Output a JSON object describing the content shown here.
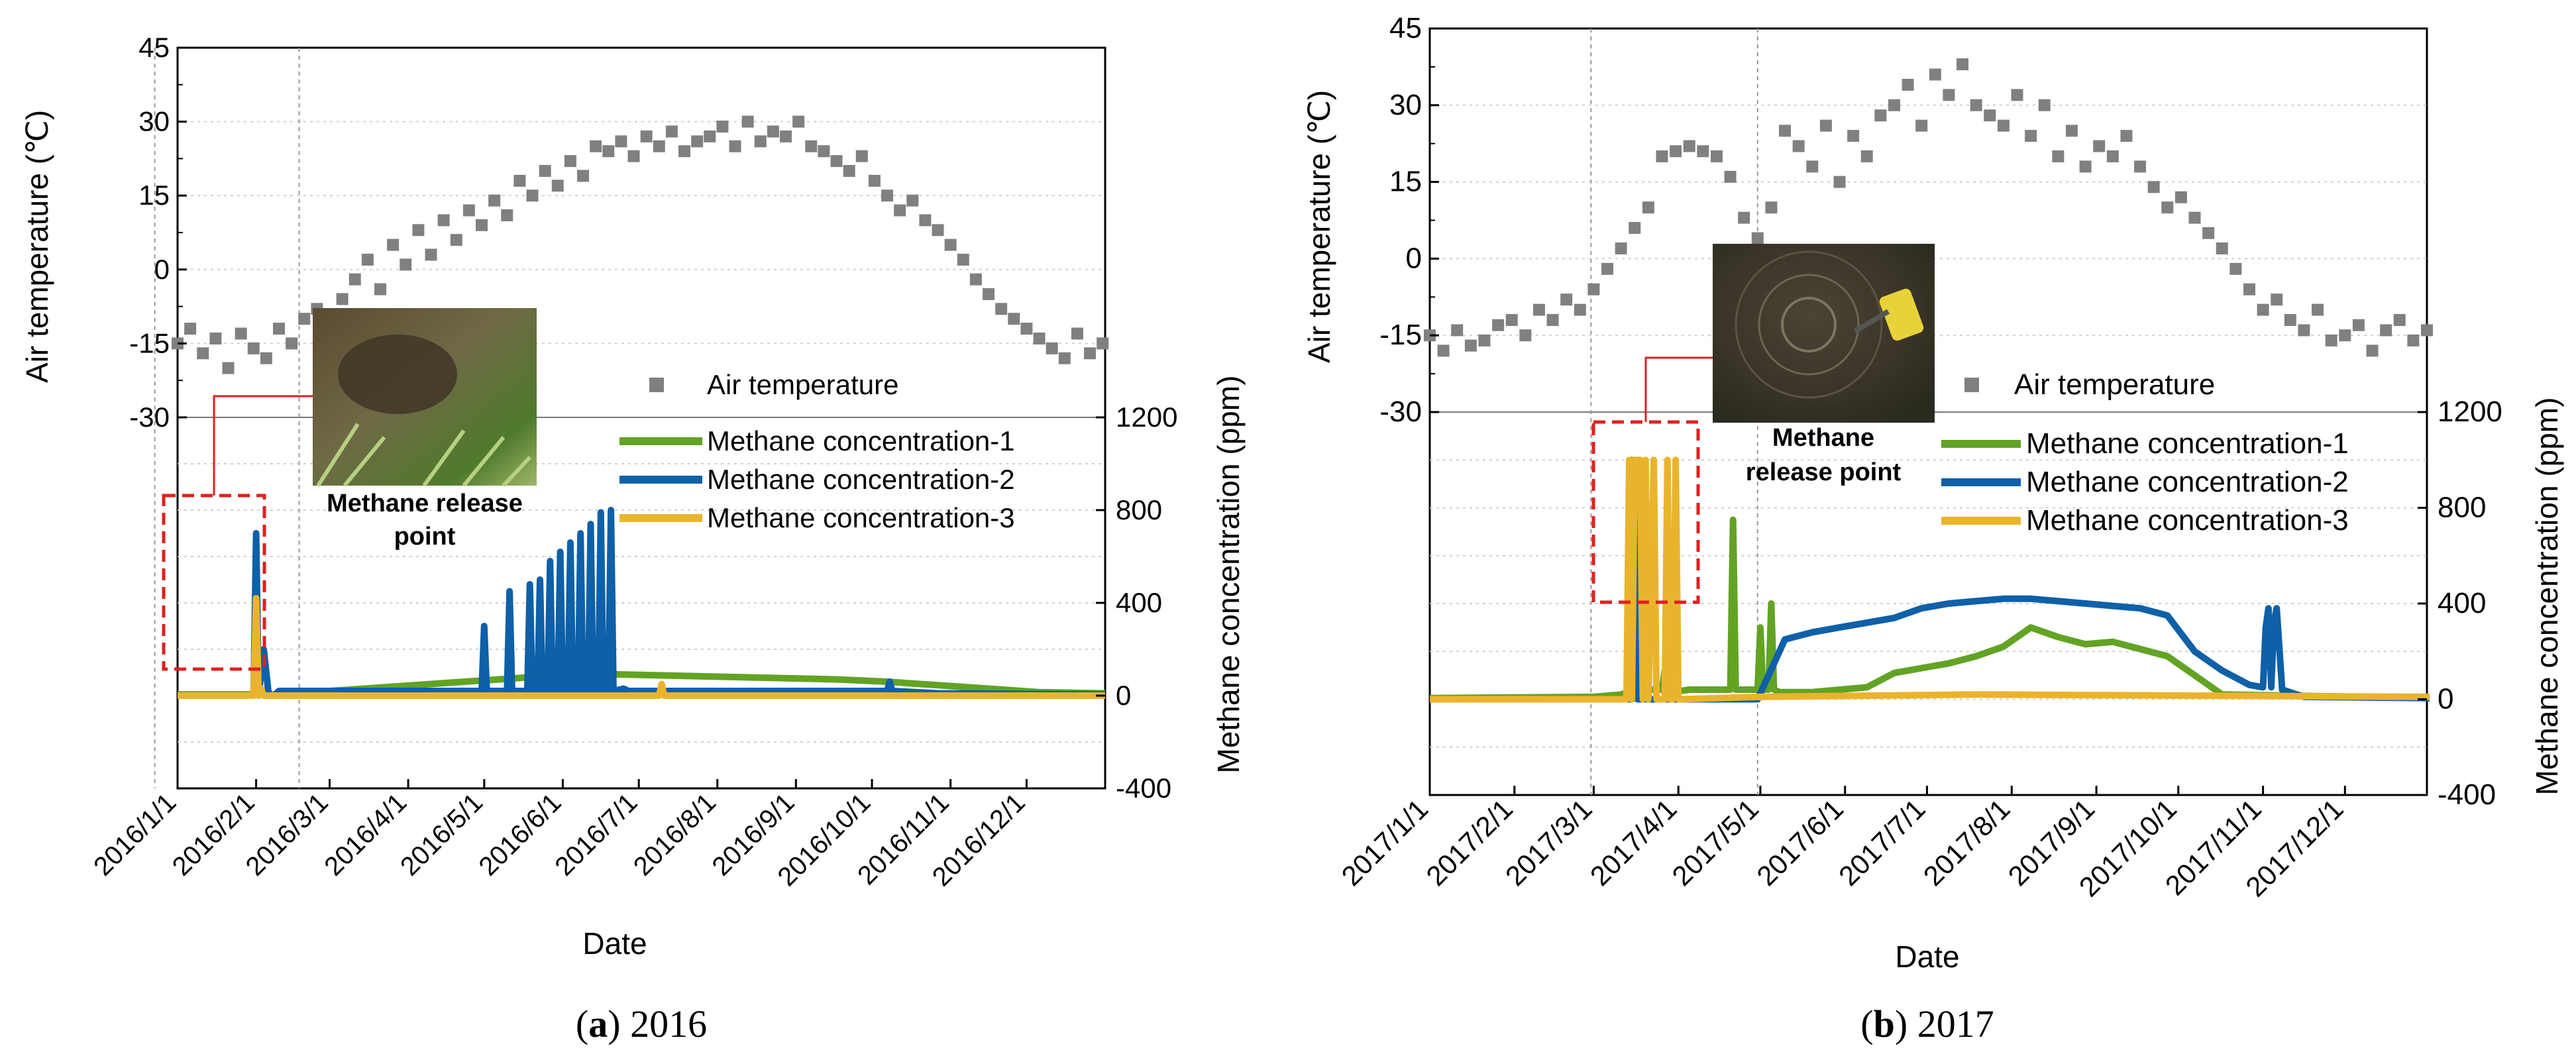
{
  "chart_data": [
    {
      "type": "scatter+line",
      "caption_letter": "a",
      "caption_year": "2016",
      "xlabel": "Date",
      "y_left_label": "Air temperature (℃)",
      "y_right_label": "Methane concentration (ppm)",
      "y_left_ticks": [
        "45",
        "30",
        "15",
        "0",
        "-15",
        "-30"
      ],
      "y_left_range": [
        -30,
        45
      ],
      "y_right_ticks": [
        "1200",
        "800",
        "400",
        "0",
        "-400"
      ],
      "y_right_range": [
        -400,
        1200
      ],
      "x_ticks": [
        "2016/1/1",
        "2016/2/1",
        "2016/3/1",
        "2016/4/1",
        "2016/5/1",
        "2016/6/1",
        "2016/7/1",
        "2016/8/1",
        "2016/9/1",
        "2016/10/1",
        "2016/11/1",
        "2016/12/1"
      ],
      "x_range_days": [
        0,
        366
      ],
      "vlines_days": [
        -9,
        48
      ],
      "legend": [
        "Air temperature",
        "Methane concentration-1",
        "Methane concentration-2",
        "Methane concentration-3"
      ],
      "photo_label": [
        "Methane release",
        "point"
      ],
      "series": [
        {
          "name": "Air temperature",
          "kind": "scatter",
          "color": "#808080",
          "x": [
            0,
            5,
            10,
            15,
            20,
            25,
            30,
            35,
            40,
            45,
            50,
            55,
            60,
            65,
            70,
            75,
            80,
            85,
            90,
            95,
            100,
            105,
            110,
            115,
            120,
            125,
            130,
            135,
            140,
            145,
            150,
            155,
            160,
            165,
            170,
            175,
            180,
            185,
            190,
            195,
            200,
            205,
            210,
            215,
            220,
            225,
            230,
            235,
            240,
            245,
            250,
            255,
            260,
            265,
            270,
            275,
            280,
            285,
            290,
            295,
            300,
            305,
            310,
            315,
            320,
            325,
            330,
            335,
            340,
            345,
            350,
            355,
            360,
            365
          ],
          "y": [
            -15,
            -12,
            -17,
            -14,
            -20,
            -13,
            -16,
            -18,
            -12,
            -15,
            -10,
            -8,
            -12,
            -6,
            -2,
            2,
            -4,
            5,
            1,
            8,
            3,
            10,
            6,
            12,
            9,
            14,
            11,
            18,
            15,
            20,
            17,
            22,
            19,
            25,
            24,
            26,
            23,
            27,
            25,
            28,
            24,
            26,
            27,
            29,
            25,
            30,
            26,
            28,
            27,
            30,
            25,
            24,
            22,
            20,
            23,
            18,
            15,
            12,
            14,
            10,
            8,
            5,
            2,
            -2,
            -5,
            -8,
            -10,
            -12,
            -14,
            -16,
            -18,
            -13,
            -17,
            -15
          ]
        },
        {
          "name": "Methane concentration-1",
          "kind": "line",
          "color": "#62a324",
          "x": [
            0,
            40,
            60,
            80,
            100,
            120,
            140,
            160,
            180,
            200,
            220,
            240,
            260,
            280,
            300,
            320,
            340,
            366
          ],
          "y": [
            5,
            5,
            20,
            35,
            50,
            65,
            80,
            95,
            90,
            85,
            80,
            75,
            70,
            60,
            45,
            30,
            15,
            10
          ]
        },
        {
          "name": "Methane concentration-2",
          "kind": "line",
          "color": "#0e60a8",
          "x": [
            0,
            30,
            31,
            32,
            34,
            36,
            38,
            40,
            100,
            120,
            121,
            122,
            130,
            131,
            132,
            138,
            139,
            140,
            142,
            143,
            144,
            146,
            147,
            148,
            150,
            151,
            152,
            154,
            155,
            156,
            158,
            159,
            160,
            162,
            163,
            164,
            166,
            167,
            168,
            170,
            171,
            172,
            176,
            178,
            200,
            260,
            280,
            281,
            282,
            300,
            366
          ],
          "y": [
            0,
            0,
            700,
            0,
            200,
            0,
            0,
            20,
            20,
            20,
            300,
            20,
            20,
            450,
            20,
            20,
            480,
            20,
            20,
            500,
            20,
            20,
            580,
            20,
            20,
            620,
            20,
            20,
            660,
            20,
            20,
            700,
            20,
            20,
            740,
            20,
            20,
            790,
            20,
            20,
            800,
            20,
            30,
            20,
            20,
            20,
            20,
            60,
            20,
            10,
            5
          ]
        },
        {
          "name": "Methane concentration-3",
          "kind": "line",
          "color": "#e9b42c",
          "x": [
            0,
            30,
            31,
            32,
            33,
            34,
            190,
            191,
            192,
            366
          ],
          "y": [
            0,
            0,
            420,
            0,
            30,
            0,
            0,
            50,
            0,
            0
          ]
        }
      ]
    },
    {
      "type": "scatter+line",
      "caption_letter": "b",
      "caption_year": "2017",
      "xlabel": "Date",
      "y_left_label": "Air temperature (℃)",
      "y_right_label": "Methane concentration (ppm)",
      "y_left_ticks": [
        "45",
        "30",
        "15",
        "0",
        "-15",
        "-30"
      ],
      "y_left_range": [
        -30,
        45
      ],
      "y_right_ticks": [
        "1200",
        "800",
        "400",
        "0",
        "-400"
      ],
      "y_right_range": [
        -400,
        1200
      ],
      "x_ticks": [
        "2017/1/1",
        "2017/2/1",
        "2017/3/1",
        "2017/4/1",
        "2017/5/1",
        "2017/6/1",
        "2017/7/1",
        "2017/8/1",
        "2017/9/1",
        "2017/10/1",
        "2017/11/1",
        "2017/12/1"
      ],
      "x_range_days": [
        0,
        365
      ],
      "vlines_days": [
        59,
        120
      ],
      "legend": [
        "Air temperature",
        "Methane concentration-1",
        "Methane concentration-2",
        "Methane concentration-3"
      ],
      "photo_label": [
        "Methane",
        "release point"
      ],
      "series": [
        {
          "name": "Air temperature",
          "kind": "scatter",
          "color": "#808080",
          "x": [
            0,
            5,
            10,
            15,
            20,
            25,
            30,
            35,
            40,
            45,
            50,
            55,
            60,
            65,
            70,
            75,
            80,
            85,
            90,
            95,
            100,
            105,
            110,
            115,
            120,
            125,
            130,
            135,
            140,
            145,
            150,
            155,
            160,
            165,
            170,
            175,
            180,
            185,
            190,
            195,
            200,
            205,
            210,
            215,
            220,
            225,
            230,
            235,
            240,
            245,
            250,
            255,
            260,
            265,
            270,
            275,
            280,
            285,
            290,
            295,
            300,
            305,
            310,
            315,
            320,
            325,
            330,
            335,
            340,
            345,
            350,
            355,
            360,
            365
          ],
          "y": [
            -15,
            -18,
            -14,
            -17,
            -16,
            -13,
            -12,
            -15,
            -10,
            -12,
            -8,
            -10,
            -6,
            -2,
            2,
            6,
            10,
            20,
            21,
            22,
            21,
            20,
            16,
            8,
            4,
            10,
            25,
            22,
            18,
            26,
            15,
            24,
            20,
            28,
            30,
            34,
            26,
            36,
            32,
            38,
            30,
            28,
            26,
            32,
            24,
            30,
            20,
            25,
            18,
            22,
            20,
            24,
            18,
            14,
            10,
            12,
            8,
            5,
            2,
            -2,
            -6,
            -10,
            -8,
            -12,
            -14,
            -10,
            -16,
            -15,
            -13,
            -18,
            -14,
            -12,
            -16,
            -14
          ]
        },
        {
          "name": "Methane concentration-1",
          "kind": "line",
          "color": "#62a324",
          "x": [
            0,
            60,
            70,
            73,
            74,
            75,
            76,
            80,
            85,
            86,
            87,
            88,
            89,
            95,
            110,
            111,
            112,
            120,
            121,
            122,
            124,
            125,
            126,
            128,
            140,
            160,
            170,
            180,
            190,
            200,
            210,
            220,
            230,
            240,
            250,
            270,
            290,
            366
          ],
          "y": [
            5,
            10,
            20,
            30,
            1000,
            30,
            40,
            40,
            40,
            120,
            40,
            40,
            30,
            40,
            40,
            750,
            40,
            40,
            300,
            40,
            40,
            400,
            40,
            30,
            30,
            50,
            110,
            130,
            150,
            180,
            220,
            300,
            260,
            230,
            240,
            180,
            20,
            5
          ]
        },
        {
          "name": "Methane concentration-2",
          "kind": "line",
          "color": "#0e60a8",
          "x": [
            0,
            70,
            74,
            75,
            76,
            78,
            80,
            120,
            130,
            140,
            150,
            160,
            170,
            180,
            190,
            200,
            210,
            220,
            230,
            240,
            250,
            260,
            270,
            280,
            290,
            300,
            305,
            306,
            307,
            308,
            309,
            310,
            312,
            320,
            366
          ],
          "y": [
            0,
            0,
            0,
            900,
            0,
            0,
            0,
            0,
            250,
            280,
            300,
            320,
            340,
            380,
            400,
            410,
            420,
            420,
            410,
            400,
            390,
            380,
            350,
            200,
            120,
            60,
            50,
            300,
            380,
            50,
            320,
            380,
            40,
            10,
            5
          ]
        },
        {
          "name": "Methane concentration-3",
          "kind": "line",
          "color": "#e9b42c",
          "x": [
            0,
            72,
            73,
            74,
            75,
            77,
            78,
            79,
            80,
            82,
            83,
            84,
            86,
            87,
            88,
            89,
            90,
            91,
            92,
            120,
            200,
            366
          ],
          "y": [
            0,
            0,
            1000,
            0,
            1000,
            1000,
            0,
            1000,
            0,
            1000,
            0,
            0,
            0,
            1000,
            0,
            0,
            1000,
            0,
            0,
            10,
            20,
            10
          ]
        }
      ]
    }
  ]
}
